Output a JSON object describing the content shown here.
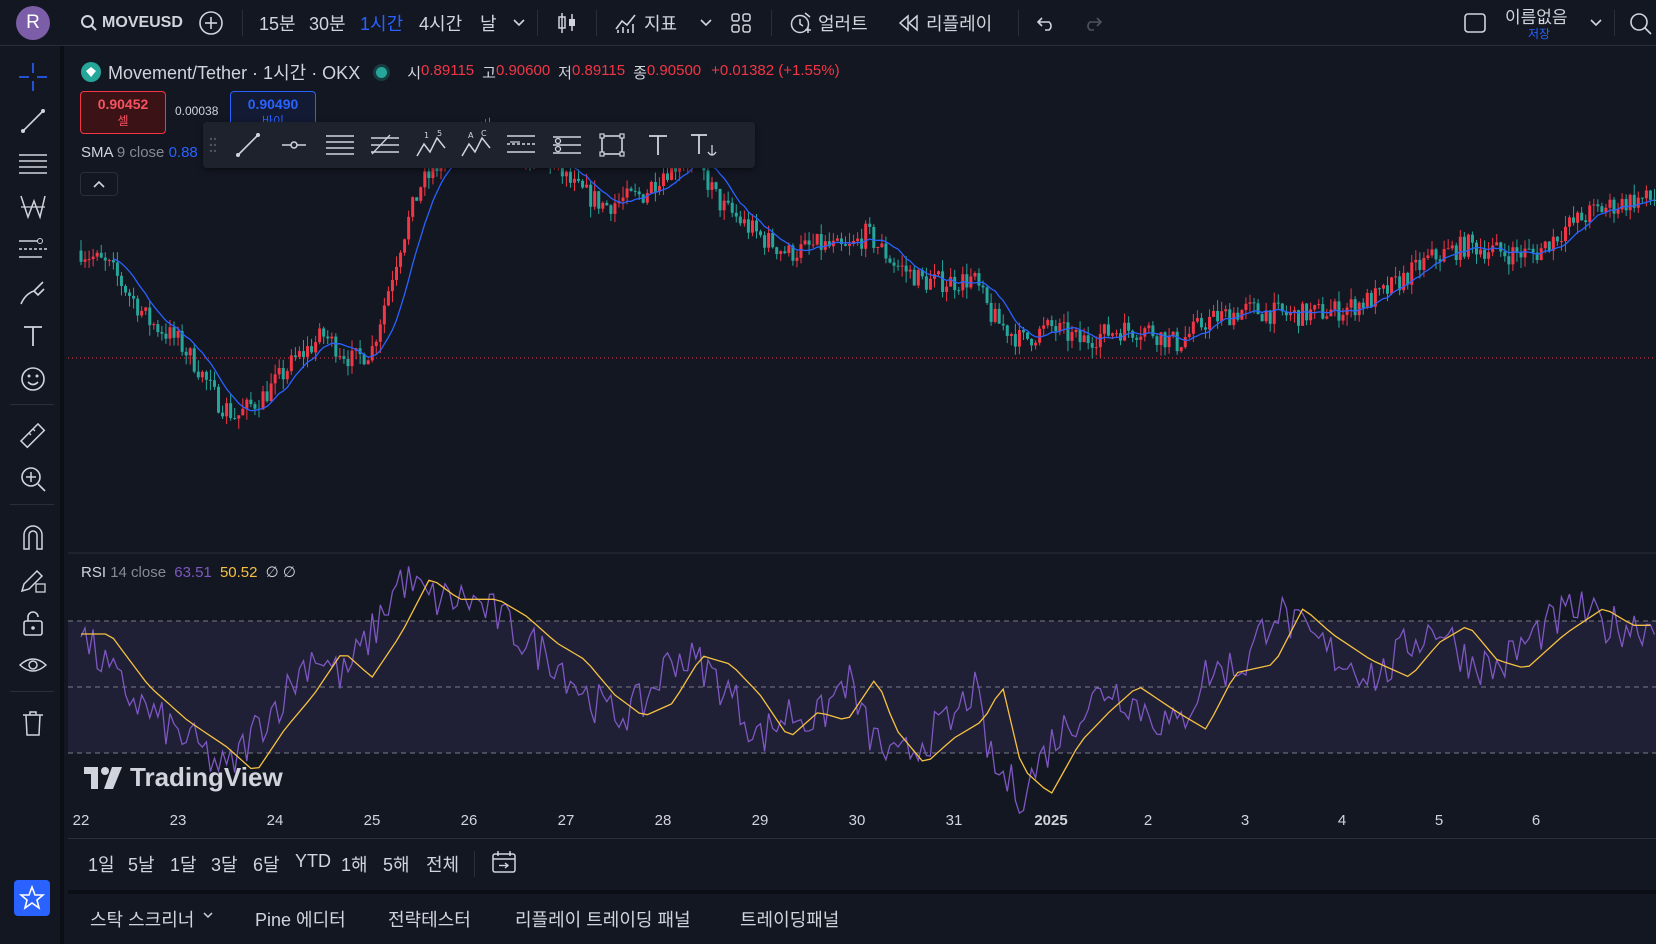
{
  "topbar": {
    "avatar_letter": "R",
    "symbol": "MOVEUSD",
    "intervals": [
      "15분",
      "30분",
      "1시간",
      "4시간",
      "날"
    ],
    "active_interval": "1시간",
    "indicators_label": "지표",
    "alert_label": "얼러트",
    "replay_label": "리플레이",
    "layout_name": "이름없음",
    "save_label": "저장"
  },
  "legend": {
    "pair": "Movement/Tether · 1시간 · OKX",
    "open_label": "시",
    "open": "0.89115",
    "high_label": "고",
    "high": "0.90600",
    "low_label": "저",
    "low": "0.89115",
    "close_label": "종",
    "close": "0.90500",
    "change": "+0.01382 (+1.55%)"
  },
  "trade": {
    "sell_price": "0.90452",
    "sell_label": "셀",
    "spread": "0.00038",
    "buy_price": "0.90490",
    "buy_label": "바이"
  },
  "sma": {
    "name": "SMA",
    "args": "9 close",
    "value": "0.88"
  },
  "rsi": {
    "name": "RSI",
    "args": "14 close",
    "value": "63.51",
    "ma_value": "50.52",
    "extra": "∅ ∅"
  },
  "branding": {
    "logo_text": "TradingView"
  },
  "xaxis": {
    "labels": [
      "22",
      "23",
      "24",
      "25",
      "26",
      "27",
      "28",
      "29",
      "30",
      "31",
      "2025",
      "2",
      "3",
      "4",
      "5",
      "6"
    ]
  },
  "ranges": [
    "1일",
    "5날",
    "1달",
    "3달",
    "6달",
    "YTD",
    "1해",
    "5해",
    "전체"
  ],
  "bottom_tabs": [
    "스탁 스크리너",
    "Pine 에디터",
    "전략테스터",
    "리플레이 트레이딩 패널",
    "트레이딩패널"
  ],
  "colors": {
    "up": "#f23645",
    "down": "#26a69a",
    "sma": "#2962ff",
    "rsi": "#7e57c2",
    "rsi_ma": "#f5c142",
    "accent": "#2962ff",
    "background": "#131722"
  },
  "chart_data": {
    "type": "candlestick",
    "x_range": [
      "22",
      "6"
    ],
    "y_range": [
      0.79,
      0.93
    ],
    "rsi_range": [
      20,
      80
    ],
    "rsi_band": [
      30,
      70
    ],
    "price_path": [
      [
        22.0,
        0.877
      ],
      [
        22.3,
        0.871
      ],
      [
        22.7,
        0.852
      ],
      [
        23.0,
        0.845
      ],
      [
        23.2,
        0.836
      ],
      [
        23.4,
        0.824
      ],
      [
        23.6,
        0.818
      ],
      [
        23.9,
        0.826
      ],
      [
        24.2,
        0.838
      ],
      [
        24.5,
        0.847
      ],
      [
        24.8,
        0.838
      ],
      [
        25.0,
        0.842
      ],
      [
        25.3,
        0.88
      ],
      [
        25.5,
        0.9
      ],
      [
        25.9,
        0.915
      ],
      [
        26.2,
        0.92
      ],
      [
        26.5,
        0.912
      ],
      [
        26.8,
        0.91
      ],
      [
        27.1,
        0.899
      ],
      [
        27.4,
        0.893
      ],
      [
        27.8,
        0.897
      ],
      [
        28.0,
        0.905
      ],
      [
        28.3,
        0.911
      ],
      [
        28.6,
        0.893
      ],
      [
        29.0,
        0.882
      ],
      [
        29.3,
        0.876
      ],
      [
        29.6,
        0.879
      ],
      [
        29.9,
        0.877
      ],
      [
        30.1,
        0.883
      ],
      [
        30.4,
        0.872
      ],
      [
        30.7,
        0.866
      ],
      [
        31.0,
        0.866
      ],
      [
        31.2,
        0.867
      ],
      [
        31.4,
        0.853
      ],
      [
        31.7,
        0.845
      ],
      [
        32.0,
        0.85
      ],
      [
        32.3,
        0.845
      ],
      [
        32.7,
        0.849
      ],
      [
        33.0,
        0.849
      ],
      [
        33.3,
        0.844
      ],
      [
        33.6,
        0.852
      ],
      [
        34.0,
        0.856
      ],
      [
        34.5,
        0.854
      ],
      [
        35.0,
        0.856
      ],
      [
        35.4,
        0.861
      ],
      [
        35.9,
        0.874
      ],
      [
        36.3,
        0.879
      ],
      [
        36.7,
        0.876
      ],
      [
        37.0,
        0.876
      ],
      [
        37.3,
        0.885
      ],
      [
        37.6,
        0.891
      ],
      [
        38.0,
        0.895
      ]
    ],
    "rsi_path": [
      [
        22.0,
        62
      ],
      [
        22.4,
        50
      ],
      [
        22.8,
        42
      ],
      [
        23.2,
        36
      ],
      [
        23.5,
        30
      ],
      [
        23.8,
        40
      ],
      [
        24.1,
        48
      ],
      [
        24.4,
        58
      ],
      [
        24.7,
        52
      ],
      [
        25.0,
        62
      ],
      [
        25.3,
        75
      ],
      [
        25.6,
        70
      ],
      [
        26.0,
        70
      ],
      [
        26.3,
        66
      ],
      [
        26.6,
        60
      ],
      [
        26.9,
        56
      ],
      [
        27.2,
        48
      ],
      [
        27.5,
        43
      ],
      [
        27.8,
        46
      ],
      [
        28.1,
        57
      ],
      [
        28.4,
        55
      ],
      [
        28.7,
        48
      ],
      [
        29.0,
        38
      ],
      [
        29.3,
        44
      ],
      [
        29.6,
        42
      ],
      [
        29.9,
        52
      ],
      [
        30.1,
        40
      ],
      [
        30.4,
        32
      ],
      [
        30.7,
        38
      ],
      [
        31.0,
        42
      ],
      [
        31.2,
        50
      ],
      [
        31.4,
        31
      ],
      [
        31.7,
        25
      ],
      [
        32.0,
        37
      ],
      [
        32.3,
        44
      ],
      [
        32.6,
        50
      ],
      [
        33.0,
        44
      ],
      [
        33.3,
        40
      ],
      [
        33.6,
        53
      ],
      [
        34.0,
        55
      ],
      [
        34.3,
        68
      ],
      [
        34.6,
        62
      ],
      [
        35.0,
        56
      ],
      [
        35.4,
        52
      ],
      [
        35.7,
        60
      ],
      [
        36.0,
        64
      ],
      [
        36.3,
        56
      ],
      [
        36.6,
        54
      ],
      [
        37.0,
        62
      ],
      [
        37.4,
        68
      ],
      [
        37.7,
        64
      ],
      [
        38.0,
        64
      ]
    ]
  }
}
